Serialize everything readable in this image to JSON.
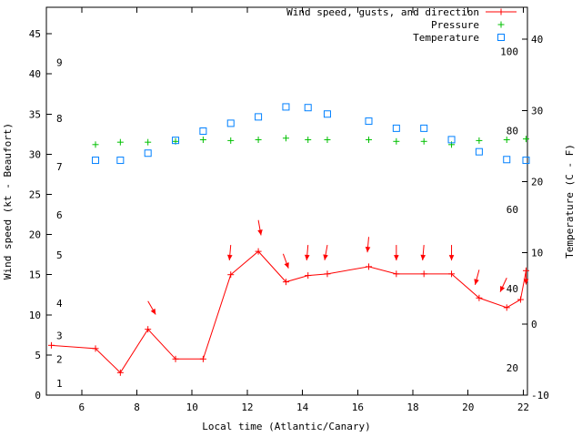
{
  "chart_data": {
    "type": "line",
    "title": "",
    "xlabel": "Local time (Atlantic/Canary)",
    "ylabel": "Wind speed (kt - Beaufort)",
    "y2label": "Temperature (C - F)",
    "x_axis": {
      "lim": [
        4.72,
        22.15
      ],
      "ticks": [
        6,
        8,
        10,
        12,
        14,
        16,
        18,
        20,
        22
      ]
    },
    "y_axis": {
      "lim": [
        0,
        48.3
      ],
      "ticks": [
        0,
        5,
        10,
        15,
        20,
        25,
        30,
        35,
        40,
        45
      ]
    },
    "y2_axis": {
      "lim": [
        -10,
        44.5
      ],
      "ticks": [
        -10,
        0,
        10,
        20,
        30,
        40
      ]
    },
    "beaufort_scale_labels": [
      {
        "text": "1",
        "kt": 1
      },
      {
        "text": "2",
        "kt": 4
      },
      {
        "text": "3",
        "kt": 7
      },
      {
        "text": "4",
        "kt": 11
      },
      {
        "text": "5",
        "kt": 17
      },
      {
        "text": "6",
        "kt": 22
      },
      {
        "text": "7",
        "kt": 28
      },
      {
        "text": "8",
        "kt": 34
      },
      {
        "text": "9",
        "kt": 41
      }
    ],
    "fahrenheit_scale_labels": [
      {
        "text": "20",
        "f": 20
      },
      {
        "text": "40",
        "f": 40
      },
      {
        "text": "60",
        "f": 60
      },
      {
        "text": "80",
        "f": 80
      },
      {
        "text": "100",
        "f": 100
      }
    ],
    "legend": [
      {
        "label": "Wind speed, gusts, and direction",
        "series": "wind_speed",
        "marker": "line-plus"
      },
      {
        "label": "Pressure",
        "series": "pressure",
        "marker": "plus"
      },
      {
        "label": "Temperature",
        "series": "temperature",
        "marker": "square"
      }
    ],
    "series": {
      "wind_speed": {
        "axis": "left",
        "color": "#ff0000",
        "style": "line-plus",
        "points": [
          [
            4.9,
            6.2
          ],
          [
            6.5,
            5.8
          ],
          [
            7.4,
            2.8
          ],
          [
            8.4,
            8.2
          ],
          [
            9.4,
            4.5
          ],
          [
            10.4,
            4.5
          ],
          [
            11.4,
            15.0
          ],
          [
            12.4,
            17.9
          ],
          [
            13.4,
            14.1
          ],
          [
            14.2,
            14.9
          ],
          [
            14.9,
            15.1
          ],
          [
            16.4,
            16.0
          ],
          [
            17.4,
            15.1
          ],
          [
            18.4,
            15.1
          ],
          [
            19.4,
            15.1
          ],
          [
            20.4,
            12.1
          ],
          [
            21.4,
            10.9
          ],
          [
            21.9,
            11.9
          ],
          [
            22.1,
            15.5
          ]
        ]
      },
      "wind_gusts": {
        "axis": "left",
        "color": "#ff0000",
        "style": "arrows",
        "points": [
          [
            8.4,
            11.7,
            -60
          ],
          [
            11.4,
            18.7,
            -95
          ],
          [
            12.4,
            21.8,
            -80
          ],
          [
            13.3,
            17.6,
            -70
          ],
          [
            14.2,
            18.7,
            -95
          ],
          [
            14.9,
            18.7,
            -100
          ],
          [
            16.4,
            19.7,
            -95
          ],
          [
            17.4,
            18.7,
            -90
          ],
          [
            18.4,
            18.7,
            -95
          ],
          [
            19.4,
            18.7,
            -90
          ],
          [
            20.4,
            15.6,
            -105
          ],
          [
            21.4,
            14.6,
            -115
          ],
          [
            22.1,
            15.7,
            -90
          ]
        ]
      },
      "pressure": {
        "axis": "left",
        "color": "#00c000",
        "style": "plus",
        "points": [
          [
            6.5,
            31.2
          ],
          [
            7.4,
            31.5
          ],
          [
            8.4,
            31.5
          ],
          [
            9.4,
            31.6
          ],
          [
            10.4,
            31.8
          ],
          [
            11.4,
            31.7
          ],
          [
            12.4,
            31.8
          ],
          [
            13.4,
            32.0
          ],
          [
            14.2,
            31.8
          ],
          [
            14.9,
            31.8
          ],
          [
            16.4,
            31.8
          ],
          [
            17.4,
            31.6
          ],
          [
            18.4,
            31.6
          ],
          [
            19.4,
            31.2
          ],
          [
            20.4,
            31.7
          ],
          [
            21.4,
            31.8
          ],
          [
            22.1,
            31.9
          ]
        ]
      },
      "temperature": {
        "axis": "right",
        "color": "#0080ff",
        "style": "square",
        "points": [
          [
            6.5,
            23.0
          ],
          [
            7.4,
            23.0
          ],
          [
            8.4,
            24.0
          ],
          [
            9.4,
            25.8
          ],
          [
            10.4,
            27.1
          ],
          [
            11.4,
            28.2
          ],
          [
            12.4,
            29.1
          ],
          [
            13.4,
            30.5
          ],
          [
            14.2,
            30.4
          ],
          [
            14.9,
            29.5
          ],
          [
            16.4,
            28.5
          ],
          [
            17.4,
            27.5
          ],
          [
            18.4,
            27.5
          ],
          [
            19.4,
            25.9
          ],
          [
            20.4,
            24.2
          ],
          [
            21.4,
            23.1
          ],
          [
            22.1,
            23.0
          ]
        ]
      }
    }
  },
  "colors": {
    "background": "#ffffff",
    "border": "#000000",
    "tick_text": "#000000",
    "axis_title_left": "#cc0000",
    "axis_title_bottom": "#cc0000",
    "axis_title_right": "#000000"
  }
}
